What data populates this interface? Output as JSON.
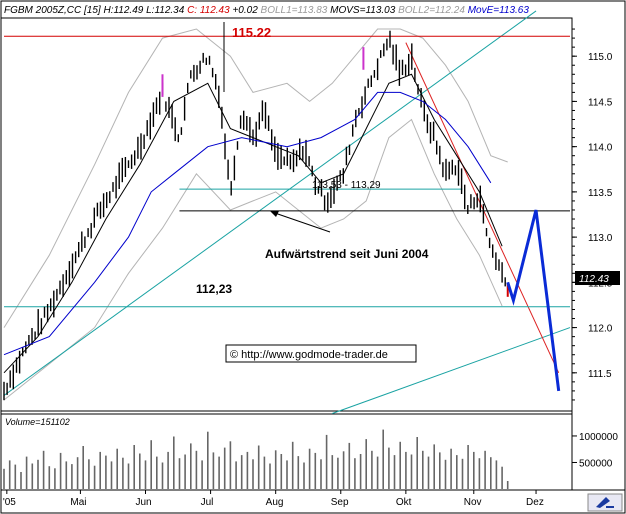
{
  "header": {
    "parts": [
      {
        "text": "FGBM 2005Z,CC [15] H:112.49 L:112.34 ",
        "color": "#000000"
      },
      {
        "text": "C: 112.43",
        "color": "#d40000"
      },
      {
        "text": " +0.02 ",
        "color": "#000000"
      },
      {
        "text": "BOLL1=113.83 ",
        "color": "#9a9a9a"
      },
      {
        "text": "MOVS=113.03 ",
        "color": "#000000"
      },
      {
        "text": "BOLL2=112.24 ",
        "color": "#9a9a9a"
      },
      {
        "text": "MovE=113.63",
        "color": "#0000cc"
      }
    ]
  },
  "annotations": {
    "high_label": "115.22",
    "range_label": "113,53 - 113,29",
    "trend_label": "Aufwärtstrend seit Juni 2004",
    "support_label": "112,23",
    "copyright": "© http://www.godmode-trader.de"
  },
  "current_price_tag": "112.43",
  "volume_label": "Volume=151102",
  "chart_data": {
    "type": "line",
    "title": "FGBM 2005Z,CC [15]",
    "instrument": "FGBM 2005Z,CC",
    "timeframe": "15",
    "high": 112.49,
    "low": 112.34,
    "close": 112.43,
    "change": 0.02,
    "indicators": {
      "BOLL1": 113.83,
      "MOVS": 113.03,
      "BOLL2": 112.24,
      "MovE": 113.63
    },
    "x_tick_labels": [
      "'05",
      "Mai",
      "Jun",
      "Jul",
      "Aug",
      "Sep",
      "Okt",
      "Nov",
      "Dez"
    ],
    "y_ticks": [
      111.5,
      112.0,
      112.5,
      113.0,
      113.5,
      114.0,
      114.5,
      115.0
    ],
    "ylim": [
      111.1,
      115.4
    ],
    "volume_ticks": [
      1000000,
      500000
    ],
    "volume_ylim": [
      0,
      1150000
    ],
    "volume": 151102,
    "levels": [
      {
        "label": "115.22",
        "value": 115.22
      },
      {
        "label": "113,53",
        "value": 113.53
      },
      {
        "label": "113,29",
        "value": 113.29
      },
      {
        "label": "112,23",
        "value": 112.23
      }
    ],
    "price_path": [
      [
        0,
        111.3
      ],
      [
        4,
        111.8
      ],
      [
        8,
        112.2
      ],
      [
        12,
        112.7
      ],
      [
        16,
        113.2
      ],
      [
        20,
        113.6
      ],
      [
        24,
        114.0
      ],
      [
        28,
        114.6
      ],
      [
        31,
        114.1
      ],
      [
        33,
        114.8
      ],
      [
        36,
        115.0
      ],
      [
        38,
        114.6
      ],
      [
        40,
        113.5
      ],
      [
        42,
        114.4
      ],
      [
        44,
        114.1
      ],
      [
        46,
        114.4
      ],
      [
        48,
        113.9
      ],
      [
        51,
        113.8
      ],
      [
        53,
        114.0
      ],
      [
        55,
        113.6
      ],
      [
        57,
        113.4
      ],
      [
        60,
        113.7
      ],
      [
        62,
        114.3
      ],
      [
        64,
        114.6
      ],
      [
        66,
        114.9
      ],
      [
        68,
        115.2
      ],
      [
        70,
        114.8
      ],
      [
        72,
        115.0
      ],
      [
        74,
        114.4
      ],
      [
        76,
        114.1
      ],
      [
        78,
        113.7
      ],
      [
        80,
        113.8
      ],
      [
        82,
        113.3
      ],
      [
        84,
        113.5
      ],
      [
        85,
        113.1
      ],
      [
        86,
        112.9
      ],
      [
        88,
        112.6
      ],
      [
        89,
        112.43
      ]
    ],
    "projection": [
      [
        89,
        112.5
      ],
      [
        90,
        112.3
      ],
      [
        94,
        113.3
      ],
      [
        98,
        111.3
      ]
    ],
    "ma_fast": [
      [
        0,
        111.5
      ],
      [
        6,
        111.9
      ],
      [
        12,
        112.5
      ],
      [
        18,
        113.2
      ],
      [
        24,
        113.8
      ],
      [
        30,
        114.5
      ],
      [
        36,
        114.7
      ],
      [
        40,
        114.2
      ],
      [
        44,
        114.1
      ],
      [
        48,
        114.0
      ],
      [
        52,
        113.9
      ],
      [
        56,
        113.6
      ],
      [
        60,
        113.7
      ],
      [
        64,
        114.2
      ],
      [
        68,
        114.7
      ],
      [
        72,
        114.8
      ],
      [
        76,
        114.3
      ],
      [
        80,
        113.9
      ],
      [
        84,
        113.5
      ],
      [
        88,
        112.9
      ]
    ],
    "ma_slow": [
      [
        0,
        111.7
      ],
      [
        8,
        111.9
      ],
      [
        16,
        112.5
      ],
      [
        22,
        113.0
      ],
      [
        26,
        113.5
      ],
      [
        30,
        113.7
      ],
      [
        36,
        114.0
      ],
      [
        42,
        114.1
      ],
      [
        50,
        114.0
      ],
      [
        56,
        114.1
      ],
      [
        62,
        114.3
      ],
      [
        66,
        114.6
      ],
      [
        70,
        114.6
      ],
      [
        74,
        114.5
      ],
      [
        78,
        114.3
      ],
      [
        82,
        114.0
      ],
      [
        86,
        113.6
      ]
    ],
    "boll_upper": [
      [
        0,
        112.0
      ],
      [
        8,
        112.8
      ],
      [
        16,
        113.8
      ],
      [
        22,
        114.6
      ],
      [
        28,
        115.2
      ],
      [
        34,
        115.3
      ],
      [
        40,
        115.0
      ],
      [
        44,
        114.6
      ],
      [
        50,
        114.7
      ],
      [
        54,
        114.5
      ],
      [
        58,
        114.7
      ],
      [
        62,
        115.0
      ],
      [
        66,
        115.3
      ],
      [
        70,
        115.3
      ],
      [
        74,
        115.2
      ],
      [
        78,
        114.9
      ],
      [
        82,
        114.5
      ],
      [
        86,
        113.9
      ],
      [
        89,
        113.83
      ]
    ],
    "boll_lower": [
      [
        0,
        111.2
      ],
      [
        8,
        111.6
      ],
      [
        16,
        112.0
      ],
      [
        22,
        112.6
      ],
      [
        28,
        113.1
      ],
      [
        34,
        113.7
      ],
      [
        40,
        113.3
      ],
      [
        44,
        113.4
      ],
      [
        48,
        113.5
      ],
      [
        52,
        113.3
      ],
      [
        56,
        113.1
      ],
      [
        60,
        113.2
      ],
      [
        64,
        113.4
      ],
      [
        68,
        114.1
      ],
      [
        72,
        114.3
      ],
      [
        76,
        113.7
      ],
      [
        80,
        113.2
      ],
      [
        84,
        112.8
      ],
      [
        88,
        112.24
      ]
    ],
    "trendlines": [
      {
        "name": "Aufwärtstrend seit Juni 2004",
        "from": [
          0,
          111.25
        ],
        "to": [
          94,
          115.5
        ]
      },
      {
        "name": "parallel",
        "from": [
          58,
          111.05
        ],
        "to": [
          100,
          112.0
        ]
      },
      {
        "name": "Abwärtstrend",
        "from": [
          71,
          115.15
        ],
        "to": [
          98,
          111.5
        ]
      }
    ],
    "volume_series": [
      380000,
      540000,
      460000,
      320000,
      610000,
      480000,
      550000,
      720000,
      430000,
      390000,
      680000,
      520000,
      470000,
      600000,
      810000,
      560000,
      440000,
      700000,
      630000,
      520000,
      760000,
      590000,
      480000,
      830000,
      670000,
      540000,
      920000,
      610000,
      500000,
      700000,
      990000,
      580000,
      650000,
      860000,
      720000,
      540000,
      1080000,
      690000,
      610000,
      780000,
      900000,
      520000,
      640000,
      700000,
      560000,
      820000,
      610000,
      480000,
      730000,
      660000,
      540000,
      890000,
      620000,
      500000,
      760000,
      680000,
      560000,
      1020000,
      640000,
      590000,
      710000,
      870000,
      580000,
      660000,
      940000,
      720000,
      610000,
      1120000,
      780000,
      640000,
      890000,
      700000,
      650000,
      980000,
      720000,
      610000,
      840000,
      690000,
      550000,
      760000,
      640000,
      570000,
      830000,
      700000,
      580000,
      720000,
      600000,
      540000,
      420000,
      151102
    ]
  }
}
